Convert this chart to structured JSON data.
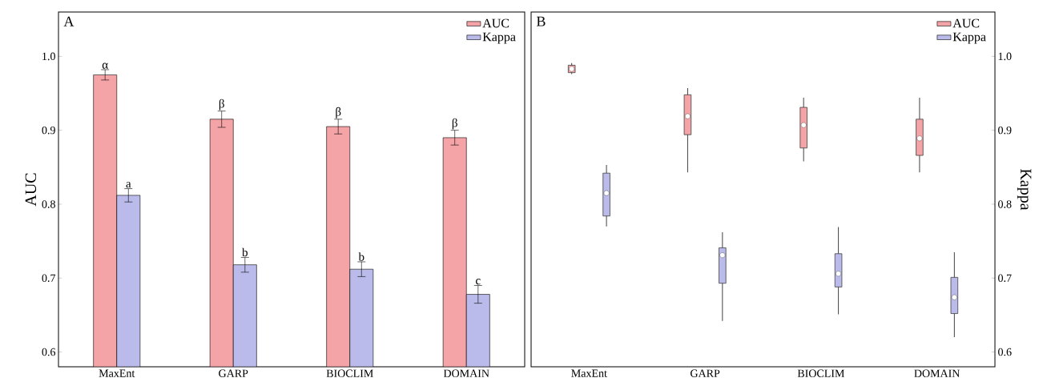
{
  "chart_data": [
    {
      "type": "bar",
      "title": "A",
      "ylabel": "AUC",
      "categories": [
        "MaxEnt",
        "GARP",
        "BIOCLIM",
        "DOMAIN"
      ],
      "series": [
        {
          "name": "AUC",
          "color": "#f4a3a6",
          "values": [
            0.975,
            0.915,
            0.905,
            0.89
          ],
          "errors": [
            0.007,
            0.011,
            0.01,
            0.01
          ]
        },
        {
          "name": "Kappa",
          "color": "#babbea",
          "values": [
            0.812,
            0.718,
            0.712,
            0.678
          ],
          "errors": [
            0.009,
            0.01,
            0.01,
            0.012
          ]
        }
      ],
      "ylim": [
        0.58,
        1.06
      ],
      "yticks": [
        0.6,
        0.7,
        0.8,
        0.9,
        {
          "value": 1.0,
          "label": "1.0"
        }
      ],
      "legend": "top right",
      "annotations": [
        {
          "text": "α",
          "x": "MaxEnt",
          "y": 0.975
        },
        {
          "text": "a",
          "x": "MaxEnt",
          "y": 0.812
        },
        {
          "text": "β",
          "x": "GARP",
          "y": 0.915
        },
        {
          "text": "b",
          "x": "GARP",
          "y": 0.718
        },
        {
          "text": "β",
          "x": "BIOCLIM",
          "y": 0.905
        },
        {
          "text": "b",
          "x": "BIOCLIM",
          "y": 0.712
        },
        {
          "text": "β",
          "x": "DOMAIN",
          "y": 0.89
        },
        {
          "text": "c",
          "x": "DOMAIN",
          "y": 0.678
        }
      ]
    },
    {
      "type": "box",
      "title": "B",
      "y2label": "Kappa",
      "categories": [
        "MaxEnt",
        "GARP",
        "BIOCLIM",
        "DOMAIN"
      ],
      "series": [
        {
          "name": "AUC",
          "color": "#f4a3a6",
          "axis": "y2",
          "boxes": [
            {
              "low": 0.976,
              "q1": 0.978,
              "median": 0.983,
              "q3": 0.988,
              "high": 0.991
            },
            {
              "low": 0.843,
              "q1": 0.894,
              "median": 0.919,
              "q3": 0.948,
              "high": 0.957
            },
            {
              "low": 0.858,
              "q1": 0.876,
              "median": 0.907,
              "q3": 0.931,
              "high": 0.944
            },
            {
              "low": 0.843,
              "q1": 0.866,
              "median": 0.889,
              "q3": 0.915,
              "high": 0.944
            }
          ]
        },
        {
          "name": "Kappa",
          "color": "#babbea",
          "axis": "y2",
          "boxes": [
            {
              "low": 0.77,
              "q1": 0.784,
              "median": 0.815,
              "q3": 0.842,
              "high": 0.853
            },
            {
              "low": 0.642,
              "q1": 0.693,
              "median": 0.731,
              "q3": 0.741,
              "high": 0.762
            },
            {
              "low": 0.651,
              "q1": 0.688,
              "median": 0.706,
              "q3": 0.733,
              "high": 0.769
            },
            {
              "low": 0.62,
              "q1": 0.652,
              "median": 0.674,
              "q3": 0.701,
              "high": 0.735
            }
          ]
        }
      ],
      "y2lim": [
        0.58,
        1.06
      ],
      "y2ticks": [
        0.6,
        0.7,
        0.8,
        0.9,
        {
          "value": 1.0,
          "label": "1.0"
        }
      ],
      "legend": "top right"
    }
  ]
}
